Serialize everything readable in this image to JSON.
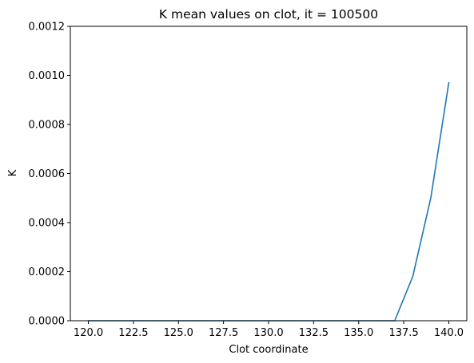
{
  "chart_data": {
    "type": "line",
    "title": "K mean values on clot, it = 100500",
    "xlabel": "Clot coordinate",
    "ylabel": "K",
    "xlim": [
      119,
      141
    ],
    "ylim": [
      0,
      0.0012
    ],
    "grid": false,
    "x_ticks": [
      120.0,
      122.5,
      125.0,
      127.5,
      130.0,
      132.5,
      135.0,
      137.5,
      140.0
    ],
    "x_tick_labels": [
      "120.0",
      "122.5",
      "125.0",
      "127.5",
      "130.0",
      "132.5",
      "135.0",
      "137.5",
      "140.0"
    ],
    "y_ticks": [
      0,
      0.0002,
      0.0004,
      0.0006,
      0.0008,
      0.001,
      0.0012
    ],
    "y_tick_labels": [
      "0.0000",
      "0.0002",
      "0.0004",
      "0.0006",
      "0.0008",
      "0.0010",
      "0.0012"
    ],
    "series": [
      {
        "color": "#1f77b4",
        "x": [
          120,
          121,
          122,
          123,
          124,
          125,
          126,
          127,
          128,
          129,
          130,
          131,
          132,
          133,
          134,
          135,
          136,
          137,
          138,
          139,
          140
        ],
        "y": [
          0,
          0,
          0,
          0,
          0,
          0,
          0,
          0,
          0,
          0,
          0,
          0,
          0,
          0,
          0,
          0,
          0,
          0,
          0.00018,
          0.0005,
          0.00097
        ]
      }
    ]
  }
}
